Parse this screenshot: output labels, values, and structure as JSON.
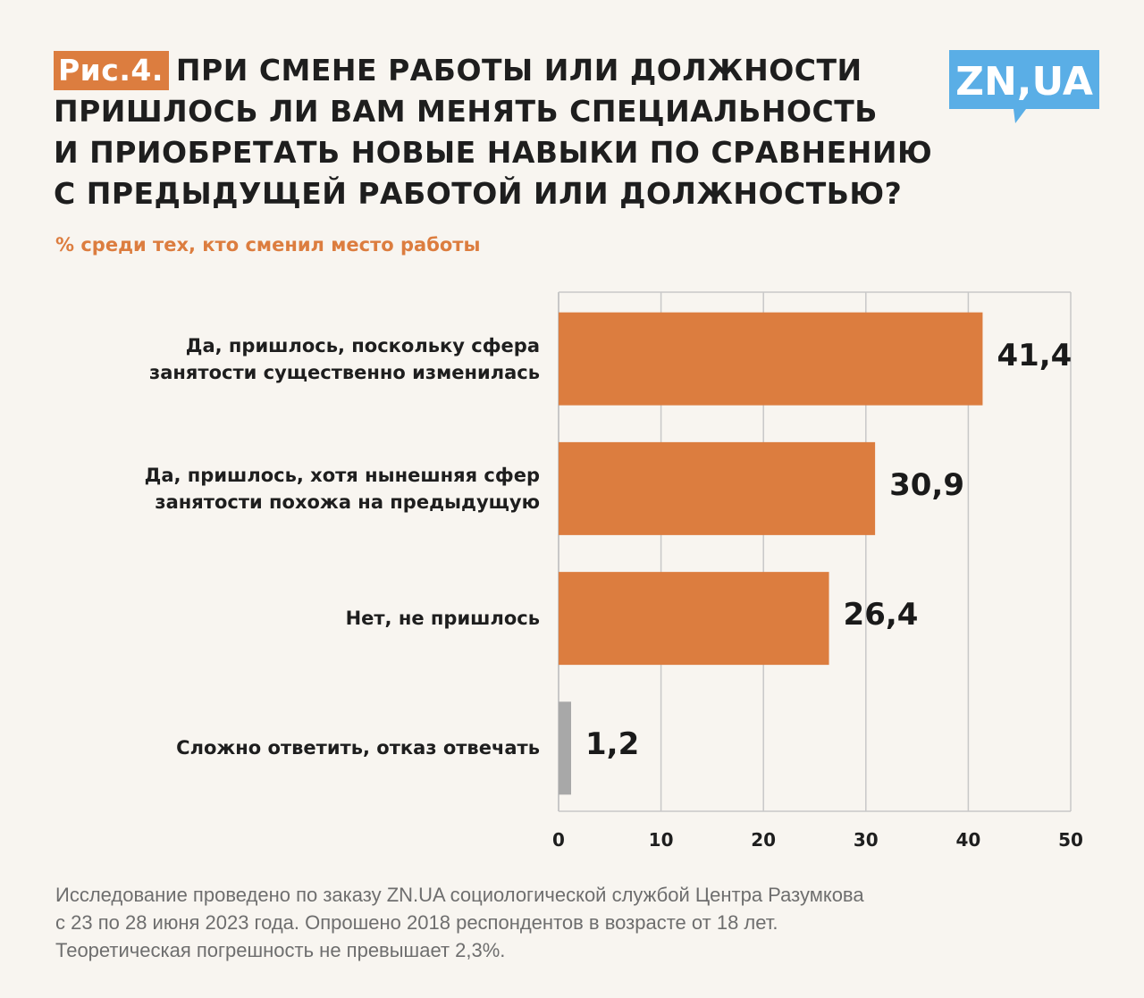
{
  "header": {
    "fig_tag": "Рис.4.",
    "title_lines": [
      "ПРИ СМЕНЕ РАБОТЫ ИЛИ ДОЛЖНОСТИ",
      "ПРИШЛОСЬ ЛИ ВАМ МЕНЯТЬ СПЕЦИАЛЬНОСТЬ",
      "И ПРИОБРЕТАТЬ НОВЫЕ НАВЫКИ ПО СРАВНЕНИЮ",
      "С ПРЕДЫДУЩЕЙ РАБОТОЙ ИЛИ ДОЛЖНОСТЬЮ?"
    ],
    "subtitle": "% среди тех, кто сменил место работы"
  },
  "logo": {
    "text": "ZN,UA",
    "color": "#5aaee6"
  },
  "colors": {
    "accent": "#dc7d3f",
    "neutral_bar": "#a8a8a8",
    "grid": "#c8c8c8"
  },
  "chart_data": {
    "type": "bar",
    "orientation": "horizontal",
    "title": "ПРИ СМЕНЕ РАБОТЫ ИЛИ ДОЛЖНОСТИ ПРИШЛОСЬ ЛИ ВАМ МЕНЯТЬ СПЕЦИАЛЬНОСТЬ И ПРИОБРЕТАТЬ НОВЫЕ НАВЫКИ ПО СРАВНЕНИЮ С ПРЕДЫДУЩЕЙ РАБОТОЙ ИЛИ ДОЛЖНОСТЬЮ?",
    "subtitle": "% среди тех, кто сменил место работы",
    "categories": [
      [
        "Да, пришлось, поскольку сфера",
        "занятости существенно изменилась"
      ],
      [
        "Да, пришлось, хотя нынешняя сфер",
        "занятости похожа на предыдущую"
      ],
      [
        "Нет, не пришлось"
      ],
      [
        "Сложно ответить, отказ отвечать"
      ]
    ],
    "values": [
      41.4,
      30.9,
      26.4,
      1.2
    ],
    "value_labels": [
      "41,4",
      "30,9",
      "26,4",
      "1,2"
    ],
    "bar_colors": [
      "#dc7d3f",
      "#dc7d3f",
      "#dc7d3f",
      "#a8a8a8"
    ],
    "xlim": [
      0,
      50
    ],
    "xticks": [
      0,
      10,
      20,
      30,
      40,
      50
    ],
    "xtick_labels": [
      "0",
      "10",
      "20",
      "30",
      "40",
      "50"
    ],
    "grid": true,
    "xlabel": "",
    "ylabel": ""
  },
  "footnote": {
    "lines": [
      "Исследование проведено по заказу ZN.UA социологической службой Центра Разумкова",
      "с 23 по 28 июня 2023 года. Опрошено 2018 респондентов в возрасте от 18 лет.",
      "Теоретическая погрешность не превышает 2,3%."
    ]
  }
}
